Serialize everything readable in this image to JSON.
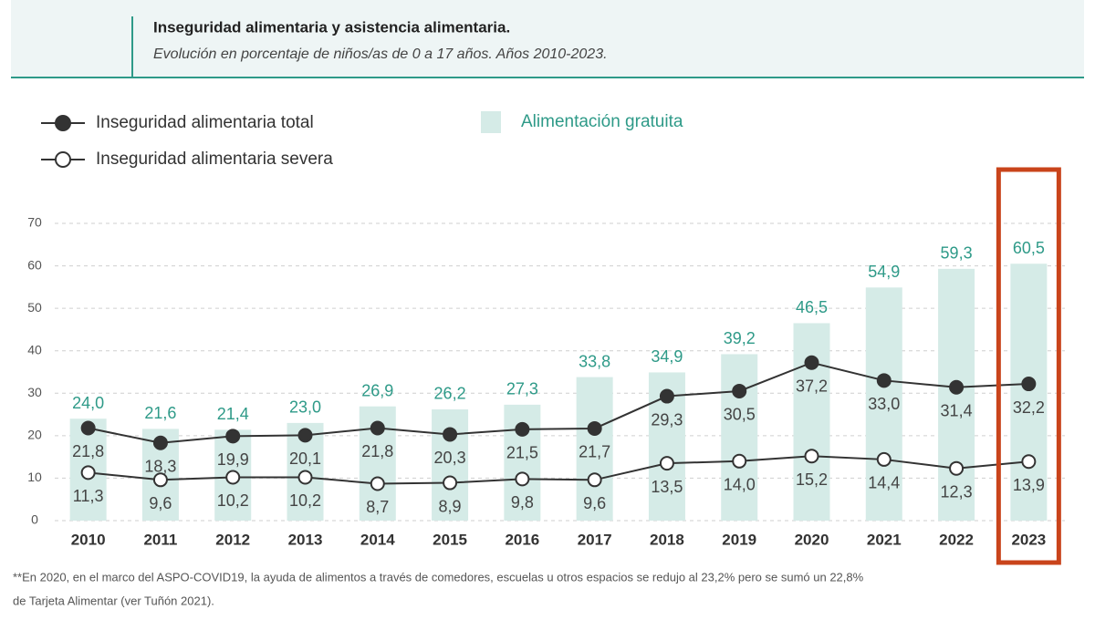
{
  "chart_data": {
    "type": "bar",
    "title": "Inseguridad alimentaria y asistencia alimentaria.",
    "subtitle": "Evolución en porcentaje de niños/as de 0 a 17 años. Años 2010-2023.",
    "footnote": [
      "**En 2020, en el marco del ASPO-COVID19, la ayuda de alimentos a través de comedores, escuelas u otros espacios se redujo al 23,2% pero se sumó un 22,8%",
      "de Tarjeta Alimentar (ver Tuñón 2021)."
    ],
    "categories": [
      "2010",
      "2011",
      "2012",
      "2013",
      "2014",
      "2015",
      "2016",
      "2017",
      "2018",
      "2019",
      "2020",
      "2021",
      "2022",
      "2023"
    ],
    "series": [
      {
        "name": "Alimentación gratuita",
        "type": "bar",
        "color": "#d5ebe7",
        "label_color": "#2e9a88",
        "values": [
          24.0,
          21.6,
          21.4,
          23.0,
          26.9,
          26.2,
          27.3,
          33.8,
          34.9,
          39.2,
          46.5,
          54.9,
          59.3,
          60.5
        ],
        "value_labels": [
          "24,0",
          "21,6",
          "21,4",
          "23,0",
          "26,9",
          "26,2",
          "27,3",
          "33,8",
          "34,9",
          "39,2",
          "46,5",
          "54,9",
          "59,3",
          "60,5"
        ]
      },
      {
        "name": "Inseguridad alimentaria total",
        "type": "line",
        "marker": "filled",
        "color": "#333333",
        "values": [
          21.8,
          18.3,
          19.9,
          20.1,
          21.8,
          20.3,
          21.5,
          21.7,
          29.3,
          30.5,
          37.2,
          33.0,
          31.4,
          32.2
        ],
        "value_labels": [
          "21,8",
          "18,3",
          "19,9",
          "20,1",
          "21,8",
          "20,3",
          "21,5",
          "21,7",
          "29,3",
          "30,5",
          "37,2",
          "33,0",
          "31,4",
          "32,2"
        ]
      },
      {
        "name": "Inseguridad alimentaria severa",
        "type": "line",
        "marker": "open",
        "color": "#333333",
        "values": [
          11.3,
          9.6,
          10.2,
          10.2,
          8.7,
          8.9,
          9.8,
          9.6,
          13.5,
          14.0,
          15.2,
          14.4,
          12.3,
          13.9
        ],
        "value_labels": [
          "11,3",
          "9,6",
          "10,2",
          "10,2",
          "8,7",
          "8,9",
          "9,8",
          "9,6",
          "13,5",
          "14,0",
          "15,2",
          "14,4",
          "12,3",
          "13,9"
        ]
      }
    ],
    "ylim": [
      0,
      70
    ],
    "yticks": [
      0,
      10,
      20,
      30,
      40,
      50,
      60,
      70
    ],
    "grid": true
  }
}
